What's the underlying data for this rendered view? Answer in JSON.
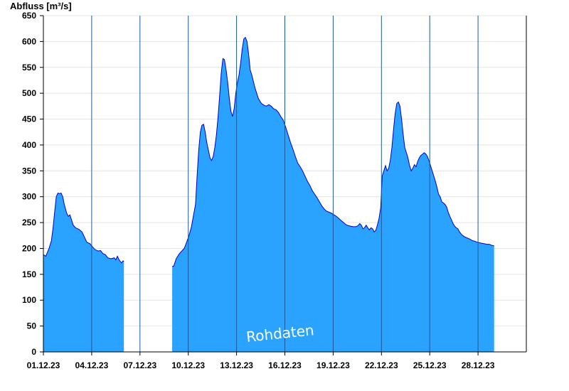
{
  "chart_data": {
    "type": "area",
    "ylabel": "Abfluss [m³/s]",
    "ylim": [
      0,
      650
    ],
    "yticks": [
      0,
      50,
      100,
      150,
      200,
      250,
      300,
      350,
      400,
      450,
      500,
      550,
      600,
      650
    ],
    "xlim": [
      0,
      30
    ],
    "xtick_labels": [
      "01.12.23",
      "04.12.23",
      "07.12.23",
      "10.12.23",
      "13.12.23",
      "16.12.23",
      "19.12.23",
      "22.12.23",
      "25.12.23",
      "28.12.23"
    ],
    "xtick_positions": [
      0,
      3,
      6,
      9,
      12,
      15,
      18,
      21,
      24,
      27
    ],
    "grid": true,
    "fill_color": "#29a3ff",
    "line_color": "#0000cc",
    "watermark": "Rohdaten",
    "series": [
      {
        "points": [
          [
            0.0,
            188
          ],
          [
            0.15,
            185
          ],
          [
            0.35,
            200
          ],
          [
            0.5,
            215
          ],
          [
            0.6,
            240
          ],
          [
            0.7,
            270
          ],
          [
            0.8,
            300
          ],
          [
            0.9,
            307
          ],
          [
            1.0,
            306
          ],
          [
            1.1,
            307
          ],
          [
            1.2,
            300
          ],
          [
            1.3,
            285
          ],
          [
            1.45,
            268
          ],
          [
            1.55,
            262
          ],
          [
            1.65,
            265
          ],
          [
            1.75,
            255
          ],
          [
            1.85,
            245
          ],
          [
            2.0,
            240
          ],
          [
            2.2,
            237
          ],
          [
            2.4,
            232
          ],
          [
            2.55,
            222
          ],
          [
            2.7,
            212
          ],
          [
            2.9,
            209
          ],
          [
            3.0,
            205
          ],
          [
            3.2,
            198
          ],
          [
            3.4,
            195
          ],
          [
            3.55,
            196
          ],
          [
            3.7,
            190
          ],
          [
            3.85,
            188
          ],
          [
            4.0,
            182
          ],
          [
            4.2,
            180
          ],
          [
            4.4,
            182
          ],
          [
            4.5,
            178
          ],
          [
            4.6,
            185
          ],
          [
            4.7,
            178
          ],
          [
            4.85,
            172
          ],
          [
            4.95,
            176
          ],
          [
            5.0,
            175
          ]
        ]
      },
      {
        "points": [
          [
            8.0,
            165
          ],
          [
            8.1,
            166
          ],
          [
            8.25,
            180
          ],
          [
            8.45,
            190
          ],
          [
            8.6,
            195
          ],
          [
            8.75,
            200
          ],
          [
            8.9,
            212
          ],
          [
            9.05,
            225
          ],
          [
            9.2,
            242
          ],
          [
            9.35,
            268
          ],
          [
            9.45,
            285
          ],
          [
            9.55,
            340
          ],
          [
            9.65,
            390
          ],
          [
            9.75,
            425
          ],
          [
            9.85,
            438
          ],
          [
            9.95,
            440
          ],
          [
            10.05,
            425
          ],
          [
            10.15,
            405
          ],
          [
            10.25,
            390
          ],
          [
            10.35,
            375
          ],
          [
            10.45,
            370
          ],
          [
            10.55,
            378
          ],
          [
            10.65,
            395
          ],
          [
            10.75,
            420
          ],
          [
            10.85,
            455
          ],
          [
            10.95,
            495
          ],
          [
            11.05,
            540
          ],
          [
            11.15,
            567
          ],
          [
            11.25,
            565
          ],
          [
            11.35,
            545
          ],
          [
            11.45,
            520
          ],
          [
            11.55,
            490
          ],
          [
            11.65,
            465
          ],
          [
            11.75,
            455
          ],
          [
            11.85,
            470
          ],
          [
            11.95,
            500
          ],
          [
            12.05,
            520
          ],
          [
            12.15,
            535
          ],
          [
            12.25,
            558
          ],
          [
            12.35,
            585
          ],
          [
            12.45,
            605
          ],
          [
            12.55,
            608
          ],
          [
            12.65,
            600
          ],
          [
            12.75,
            575
          ],
          [
            12.85,
            545
          ],
          [
            12.95,
            535
          ],
          [
            13.05,
            522
          ],
          [
            13.15,
            510
          ],
          [
            13.25,
            500
          ],
          [
            13.35,
            490
          ],
          [
            13.45,
            485
          ],
          [
            13.55,
            480
          ],
          [
            13.7,
            477
          ],
          [
            13.85,
            475
          ],
          [
            14.0,
            478
          ],
          [
            14.15,
            475
          ],
          [
            14.3,
            470
          ],
          [
            14.45,
            468
          ],
          [
            14.6,
            463
          ],
          [
            14.75,
            455
          ],
          [
            14.9,
            448
          ],
          [
            15.05,
            435
          ],
          [
            15.2,
            420
          ],
          [
            15.35,
            405
          ],
          [
            15.5,
            392
          ],
          [
            15.65,
            378
          ],
          [
            15.8,
            365
          ],
          [
            15.95,
            358
          ],
          [
            16.1,
            350
          ],
          [
            16.25,
            340
          ],
          [
            16.4,
            330
          ],
          [
            16.55,
            322
          ],
          [
            16.7,
            312
          ],
          [
            16.85,
            305
          ],
          [
            17.0,
            298
          ],
          [
            17.15,
            290
          ],
          [
            17.3,
            282
          ],
          [
            17.45,
            276
          ],
          [
            17.6,
            272
          ],
          [
            17.75,
            270
          ],
          [
            17.9,
            268
          ],
          [
            18.05,
            265
          ],
          [
            18.2,
            262
          ],
          [
            18.35,
            258
          ],
          [
            18.5,
            254
          ],
          [
            18.65,
            250
          ],
          [
            18.8,
            246
          ],
          [
            18.95,
            244
          ],
          [
            19.1,
            243
          ],
          [
            19.25,
            242
          ],
          [
            19.4,
            242
          ],
          [
            19.55,
            244
          ],
          [
            19.65,
            248
          ],
          [
            19.75,
            245
          ],
          [
            19.85,
            238
          ],
          [
            19.95,
            240
          ],
          [
            20.05,
            245
          ],
          [
            20.15,
            240
          ],
          [
            20.25,
            236
          ],
          [
            20.35,
            240
          ],
          [
            20.45,
            238
          ],
          [
            20.55,
            232
          ],
          [
            20.65,
            235
          ],
          [
            20.75,
            245
          ],
          [
            20.85,
            258
          ],
          [
            20.95,
            278
          ],
          [
            21.05,
            340
          ],
          [
            21.15,
            350
          ],
          [
            21.25,
            360
          ],
          [
            21.35,
            350
          ],
          [
            21.45,
            355
          ],
          [
            21.55,
            370
          ],
          [
            21.65,
            395
          ],
          [
            21.75,
            430
          ],
          [
            21.85,
            460
          ],
          [
            21.95,
            480
          ],
          [
            22.05,
            483
          ],
          [
            22.15,
            475
          ],
          [
            22.25,
            450
          ],
          [
            22.35,
            420
          ],
          [
            22.45,
            395
          ],
          [
            22.55,
            385
          ],
          [
            22.65,
            375
          ],
          [
            22.75,
            360
          ],
          [
            22.85,
            350
          ],
          [
            22.95,
            355
          ],
          [
            23.05,
            362
          ],
          [
            23.15,
            358
          ],
          [
            23.25,
            368
          ],
          [
            23.35,
            375
          ],
          [
            23.45,
            380
          ],
          [
            23.55,
            382
          ],
          [
            23.65,
            385
          ],
          [
            23.75,
            383
          ],
          [
            23.85,
            378
          ],
          [
            23.95,
            370
          ],
          [
            24.05,
            360
          ],
          [
            24.15,
            350
          ],
          [
            24.25,
            340
          ],
          [
            24.35,
            330
          ],
          [
            24.45,
            318
          ],
          [
            24.55,
            305
          ],
          [
            24.65,
            300
          ],
          [
            24.75,
            290
          ],
          [
            24.85,
            288
          ],
          [
            24.95,
            285
          ],
          [
            25.05,
            280
          ],
          [
            25.15,
            270
          ],
          [
            25.25,
            262
          ],
          [
            25.35,
            255
          ],
          [
            25.45,
            248
          ],
          [
            25.55,
            243
          ],
          [
            25.65,
            240
          ],
          [
            25.75,
            238
          ],
          [
            25.85,
            232
          ],
          [
            25.95,
            228
          ],
          [
            26.05,
            225
          ],
          [
            26.2,
            222
          ],
          [
            26.35,
            220
          ],
          [
            26.5,
            218
          ],
          [
            26.65,
            215
          ],
          [
            26.8,
            214
          ],
          [
            26.95,
            212
          ],
          [
            27.1,
            211
          ],
          [
            27.25,
            210
          ],
          [
            27.4,
            209
          ],
          [
            27.55,
            208
          ],
          [
            27.7,
            208
          ],
          [
            27.85,
            206
          ],
          [
            28.0,
            205
          ]
        ]
      }
    ]
  }
}
